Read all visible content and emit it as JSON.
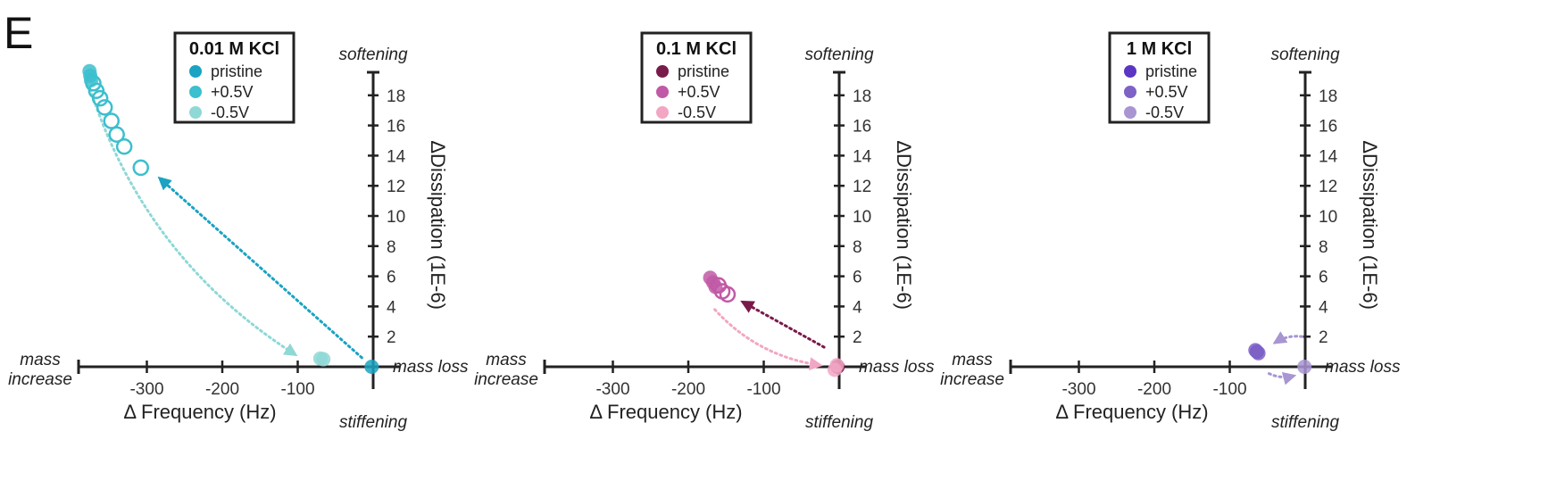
{
  "panel_letter": "E",
  "chart_data": [
    {
      "type": "scatter",
      "title": "0.01 M KCl",
      "xlabel": "Δ Frequency (Hz)",
      "ylabel": "ΔDissipation (1E-6)",
      "xlim": [
        -390,
        0
      ],
      "ylim": [
        0,
        20
      ],
      "xticks": [
        -300,
        -200,
        -100
      ],
      "yticks": [
        2,
        4,
        6,
        8,
        10,
        12,
        14,
        16,
        18
      ],
      "annotations": {
        "top": "softening",
        "bottom": "stiffening",
        "left": "mass\nincrease",
        "right": "mass loss"
      },
      "legend": [
        {
          "label": "pristine",
          "color": "#1aa3c2"
        },
        {
          "label": "+0.5V",
          "color": "#3cbfce"
        },
        {
          "label": "-0.5V",
          "color": "#8fd8d6"
        }
      ],
      "series": [
        {
          "name": "pristine",
          "style": "filled",
          "color": "#1aa3c2",
          "points": [
            [
              -2,
              0.0
            ]
          ]
        },
        {
          "name": "+0.5V",
          "style": "filled",
          "color": "#3cbfce",
          "points": [
            [
              -376,
              19.6
            ],
            [
              -375,
              19.3
            ],
            [
              -374,
              19.0
            ]
          ]
        },
        {
          "name": "+0.5V",
          "style": "open",
          "color": "#3cbfce",
          "points": [
            [
              -371,
              18.8
            ],
            [
              -367,
              18.3
            ],
            [
              -362,
              17.8
            ],
            [
              -356,
              17.2
            ],
            [
              -347,
              16.3
            ],
            [
              -340,
              15.4
            ],
            [
              -330,
              14.6
            ],
            [
              -308,
              13.2
            ]
          ]
        },
        {
          "name": "-0.5V",
          "style": "filled",
          "color": "#8fd8d6",
          "points": [
            [
              -70,
              0.55
            ],
            [
              -66,
              0.5
            ]
          ]
        }
      ],
      "arrows": [
        {
          "from": [
            -15,
            0.6
          ],
          "to": [
            -283,
            12.5
          ],
          "color": "#1aa3c2",
          "curved": false
        },
        {
          "from": [
            -375,
            18.4
          ],
          "to": [
            -103,
            0.8
          ],
          "color": "#8fd8d6",
          "curved": true
        }
      ]
    },
    {
      "type": "scatter",
      "title": "0.1 M KCl",
      "xlabel": "Δ Frequency (Hz)",
      "ylabel": "ΔDissipation (1E-6)",
      "xlim": [
        -390,
        0
      ],
      "ylim": [
        0,
        20
      ],
      "xticks": [
        -300,
        -200,
        -100
      ],
      "yticks": [
        2,
        4,
        6,
        8,
        10,
        12,
        14,
        16,
        18
      ],
      "annotations": {
        "top": "softening",
        "bottom": "stiffening",
        "left": "mass\nincrease",
        "right": "mass loss"
      },
      "legend": [
        {
          "label": "pristine",
          "color": "#7a1a4a"
        },
        {
          "label": "+0.5V",
          "color": "#c15aa6"
        },
        {
          "label": "-0.5V",
          "color": "#f2a6c4"
        }
      ],
      "series": [
        {
          "name": "pristine",
          "style": "filled",
          "color": "#7a1a4a",
          "points": [
            [
              -2,
              0.0
            ]
          ]
        },
        {
          "name": "+0.5V",
          "style": "filled",
          "color": "#c15aa6",
          "points": [
            [
              -171,
              5.9
            ],
            [
              -167,
              5.6
            ],
            [
              -164,
              5.3
            ]
          ]
        },
        {
          "name": "+0.5V",
          "style": "open",
          "color": "#c15aa6",
          "points": [
            [
              -160,
              5.4
            ],
            [
              -155,
              5.0
            ],
            [
              -148,
              4.8
            ]
          ]
        },
        {
          "name": "-0.5V",
          "style": "filled",
          "color": "#f2a6c4",
          "points": [
            [
              -6,
              -0.2
            ],
            [
              -3,
              0.1
            ]
          ]
        }
      ],
      "arrows": [
        {
          "from": [
            -20,
            1.3
          ],
          "to": [
            -128,
            4.3
          ],
          "color": "#7a1a4a",
          "curved": false
        },
        {
          "from": [
            -165,
            3.8
          ],
          "to": [
            -25,
            0.1
          ],
          "color": "#f2a6c4",
          "curved": true
        }
      ]
    },
    {
      "type": "scatter",
      "title": "1 M KCl",
      "xlabel": "Δ Frequency (Hz)",
      "ylabel": "ΔDissipation (1E-6)",
      "xlim": [
        -390,
        0
      ],
      "ylim": [
        0,
        20
      ],
      "xticks": [
        -300,
        -200,
        -100
      ],
      "yticks": [
        2,
        4,
        6,
        8,
        10,
        12,
        14,
        16,
        18
      ],
      "annotations": {
        "top": "softening",
        "bottom": "stiffening",
        "left": "mass\nincrease",
        "right": "mass loss"
      },
      "legend": [
        {
          "label": "pristine",
          "color": "#5b36c4"
        },
        {
          "label": "+0.5V",
          "color": "#7e62c6"
        },
        {
          "label": "-0.5V",
          "color": "#a895d2"
        }
      ],
      "series": [
        {
          "name": "pristine",
          "style": "filled",
          "color": "#5b36c4",
          "points": [
            [
              -64,
              1.0
            ]
          ]
        },
        {
          "name": "+0.5V",
          "style": "filled",
          "color": "#7e62c6",
          "points": [
            [
              -66,
              1.1
            ],
            [
              -62,
              0.9
            ]
          ]
        },
        {
          "name": "-0.5V",
          "style": "filled",
          "color": "#a895d2",
          "points": [
            [
              -1,
              0.0
            ]
          ]
        }
      ],
      "arrows": [
        {
          "from": [
            -4,
            2.0
          ],
          "to": [
            -40,
            1.6
          ],
          "color": "#a895d2",
          "curved": true
        },
        {
          "from": [
            -48,
            -0.45
          ],
          "to": [
            -15,
            -0.6
          ],
          "color": "#a895d2",
          "curved": true
        }
      ]
    }
  ]
}
